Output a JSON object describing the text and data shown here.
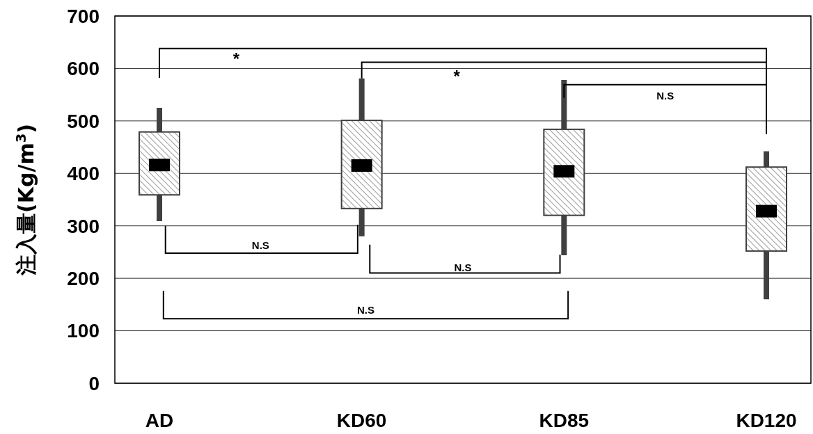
{
  "chart_data": {
    "type": "box",
    "ylabel": "注入量(Kg/m$^{3}$)",
    "categories": [
      "AD",
      "KD60",
      "KD85",
      "KD120"
    ],
    "boxes": [
      {
        "low": 309,
        "q1": 359,
        "median": 416,
        "q3": 479,
        "high": 525
      },
      {
        "low": 280,
        "q1": 333,
        "median": 415,
        "q3": 501,
        "high": 581
      },
      {
        "low": 244,
        "q1": 320,
        "median": 404,
        "q3": 484,
        "high": 578
      },
      {
        "low": 160,
        "q1": 252,
        "median": 328,
        "q3": 412,
        "high": 442
      }
    ],
    "color": "#404040",
    "ylim": [
      0,
      700
    ],
    "yticks": [
      0,
      100,
      200,
      300,
      400,
      500,
      600,
      700
    ],
    "grid": "y",
    "annotations": [
      "*",
      "*",
      "N.S",
      "N.S",
      "N.S",
      "N.S"
    ]
  }
}
